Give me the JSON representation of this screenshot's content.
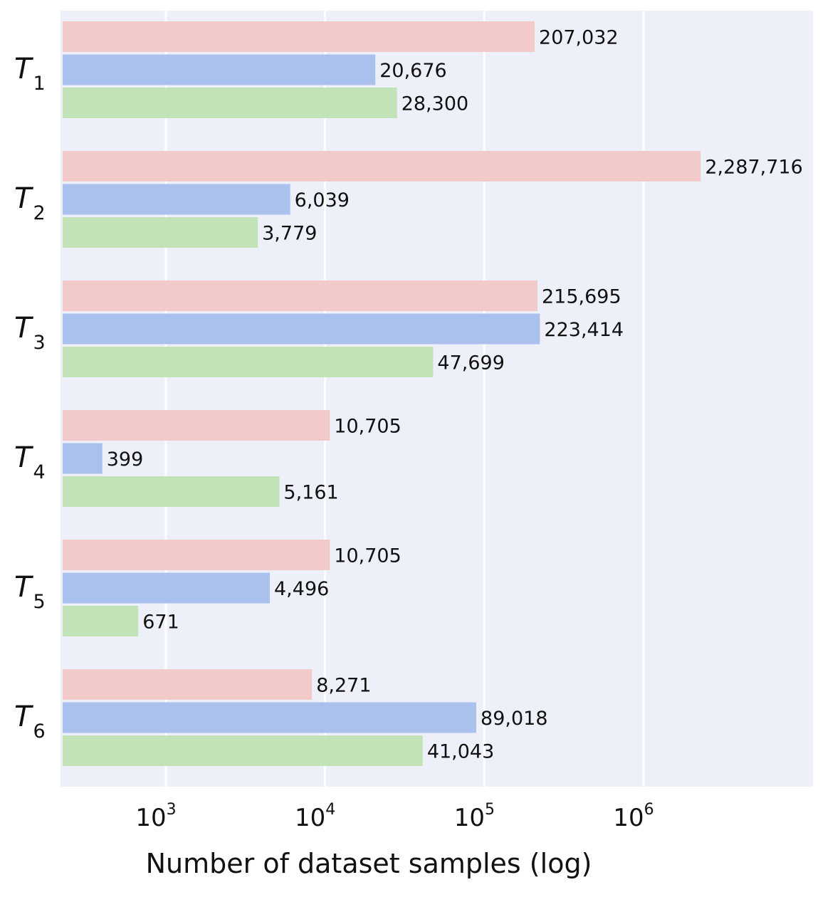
{
  "chart_data": {
    "type": "bar",
    "orientation": "horizontal",
    "xscale": "log",
    "xlim": [
      220,
      9000000
    ],
    "grid": true,
    "xlabel": "Number of dataset samples (log)",
    "ticks": [
      {
        "base": "10",
        "exp": "3",
        "value": 1000
      },
      {
        "base": "10",
        "exp": "4",
        "value": 10000
      },
      {
        "base": "10",
        "exp": "5",
        "value": 100000
      },
      {
        "base": "10",
        "exp": "6",
        "value": 1000000
      }
    ],
    "categories": [
      {
        "letter": "T",
        "sub": "1"
      },
      {
        "letter": "T",
        "sub": "2"
      },
      {
        "letter": "T",
        "sub": "3"
      },
      {
        "letter": "T",
        "sub": "4"
      },
      {
        "letter": "T",
        "sub": "5"
      },
      {
        "letter": "T",
        "sub": "6"
      }
    ],
    "series": [
      {
        "color": "#f2caca",
        "values": [
          207032,
          2287716,
          215695,
          10705,
          10705,
          8271
        ],
        "labels": [
          "207,032",
          "2,287,716",
          "215,695",
          "10,705",
          "10,705",
          "8,271"
        ]
      },
      {
        "color": "#aac1ee",
        "values": [
          20676,
          6039,
          223414,
          399,
          4496,
          89018
        ],
        "labels": [
          "20,676",
          "6,039",
          "223,414",
          "399",
          "4,496",
          "89,018"
        ]
      },
      {
        "color": "#c2e2b7",
        "values": [
          28300,
          3779,
          47699,
          5161,
          671,
          41043
        ],
        "labels": [
          "28,300",
          "3,779",
          "47,699",
          "5,161",
          "671",
          "41,043"
        ]
      }
    ],
    "colors": {
      "plot_bg": "#eef0f9",
      "grid": "#ffffff"
    }
  }
}
